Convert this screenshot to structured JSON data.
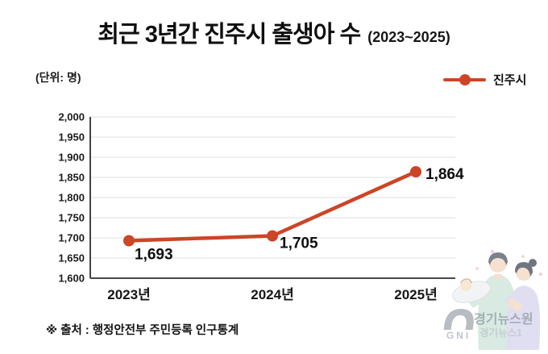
{
  "header": {
    "title": "최근 3년간 진주시 출생아 수",
    "subtitle": "(2023~2025)",
    "unit_label": "(단위: 명)"
  },
  "legend": {
    "label": "진주시"
  },
  "chart_data": {
    "type": "line",
    "title": "최근 3년간 진주시 출생아 수 (2023~2025)",
    "xlabel": "",
    "ylabel": "출생아 수 (명)",
    "categories": [
      "2023년",
      "2024년",
      "2025년"
    ],
    "series": [
      {
        "name": "진주시",
        "values": [
          1693,
          1705,
          1864
        ]
      }
    ],
    "point_labels": [
      "1,693",
      "1,705",
      "1,864"
    ],
    "y_ticks": [
      "2,000",
      "1,950",
      "1,900",
      "1,850",
      "1,800",
      "1,750",
      "1,700",
      "1,650",
      "1,600"
    ],
    "ylim": [
      1600,
      2000
    ],
    "y_step": 50,
    "grid": true,
    "legend_position": "top-right",
    "colors": {
      "line": "#cc4526",
      "grid": "#e5e5e5",
      "axis": "#2f2f2f",
      "tick_text": "#1b1b1b",
      "point_label_text": "#0f0f0f"
    }
  },
  "footer": {
    "source": "※ 출처 : 행정안전부 주민등록 인구통계"
  },
  "watermark": {
    "brand": "경기뉴스원",
    "sub_brand": "경기뉴스1",
    "logo_text": "GNI"
  }
}
